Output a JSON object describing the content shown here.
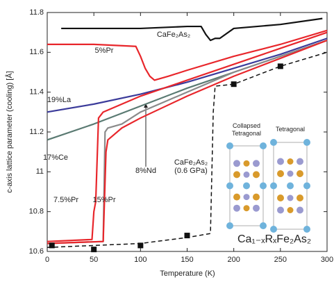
{
  "chart_data": {
    "type": "line",
    "xlabel": "Temperature (K)",
    "ylabel": "c-axis lattice parameter (cooling) [Å]",
    "xlim": [
      0,
      300
    ],
    "ylim": [
      10.6,
      11.8
    ],
    "xticks": [
      0,
      50,
      100,
      150,
      200,
      250,
      300
    ],
    "yticks": [
      10.6,
      10.8,
      11,
      11.2,
      11.4,
      11.6,
      11.8
    ],
    "series": [
      {
        "name": "CaFe₂As₂",
        "color": "#111111",
        "x": [
          15,
          50,
          100,
          150,
          165,
          170,
          175,
          180,
          185,
          200,
          250,
          295
        ],
        "values": [
          11.72,
          11.72,
          11.72,
          11.73,
          11.73,
          11.69,
          11.66,
          11.67,
          11.67,
          11.72,
          11.74,
          11.77
        ]
      },
      {
        "name": "5%Pr",
        "color": "#e8262b",
        "x": [
          0,
          50,
          95,
          100,
          105,
          110,
          115,
          130,
          150,
          200,
          250,
          300
        ],
        "values": [
          11.64,
          11.64,
          11.63,
          11.58,
          11.52,
          11.48,
          11.46,
          11.48,
          11.51,
          11.58,
          11.64,
          11.71
        ]
      },
      {
        "name": "19%La",
        "color": "#3b3b9a",
        "x": [
          0,
          50,
          100,
          150,
          200,
          250,
          300
        ],
        "values": [
          11.3,
          11.34,
          11.39,
          11.45,
          11.52,
          11.59,
          11.67
        ]
      },
      {
        "name": "17%Ce",
        "color": "#5a7a72",
        "x": [
          0,
          50,
          100,
          150,
          200,
          250,
          300
        ],
        "values": [
          11.16,
          11.24,
          11.33,
          11.42,
          11.5,
          11.58,
          11.66
        ]
      },
      {
        "name": "8%Nd",
        "color": "#8a8a8a",
        "x": [
          0,
          60,
          62,
          65,
          80,
          100,
          150,
          200,
          250,
          300
        ],
        "values": [
          10.64,
          10.65,
          11.2,
          11.22,
          11.24,
          11.3,
          11.4,
          11.5,
          11.58,
          11.66
        ]
      },
      {
        "name": "7.5%Pr",
        "color": "#e8262b",
        "x": [
          0,
          48,
          50,
          52,
          55,
          60,
          100,
          150,
          200,
          250,
          300
        ],
        "values": [
          10.65,
          10.66,
          10.8,
          10.85,
          11.27,
          11.3,
          11.38,
          11.46,
          11.54,
          11.62,
          11.7
        ]
      },
      {
        "name": "15%Pr",
        "color": "#e8262b",
        "x": [
          0,
          60,
          63,
          65,
          80,
          100,
          150,
          200,
          250,
          300
        ],
        "values": [
          10.64,
          10.65,
          11.1,
          11.16,
          11.22,
          11.27,
          11.38,
          11.48,
          11.57,
          11.66
        ]
      },
      {
        "name": "CaFe₂As₂ (0.6 GPa)",
        "color": "#111111",
        "dashed": true,
        "x": [
          0,
          100,
          150,
          175,
          178,
          180,
          200,
          250,
          300
        ],
        "values": [
          10.62,
          10.64,
          10.67,
          10.69,
          11.3,
          11.43,
          11.44,
          11.53,
          11.6
        ]
      }
    ],
    "markers": {
      "color": "#111111",
      "x": [
        5,
        50,
        100,
        150,
        200,
        250
      ],
      "values": [
        10.63,
        10.61,
        10.63,
        10.68,
        11.44,
        11.53
      ]
    },
    "formula": "Ca₁₋ₓRₓFe₂As₂",
    "structures": [
      "Collapsed Tetragonal",
      "Tetragonal"
    ]
  }
}
